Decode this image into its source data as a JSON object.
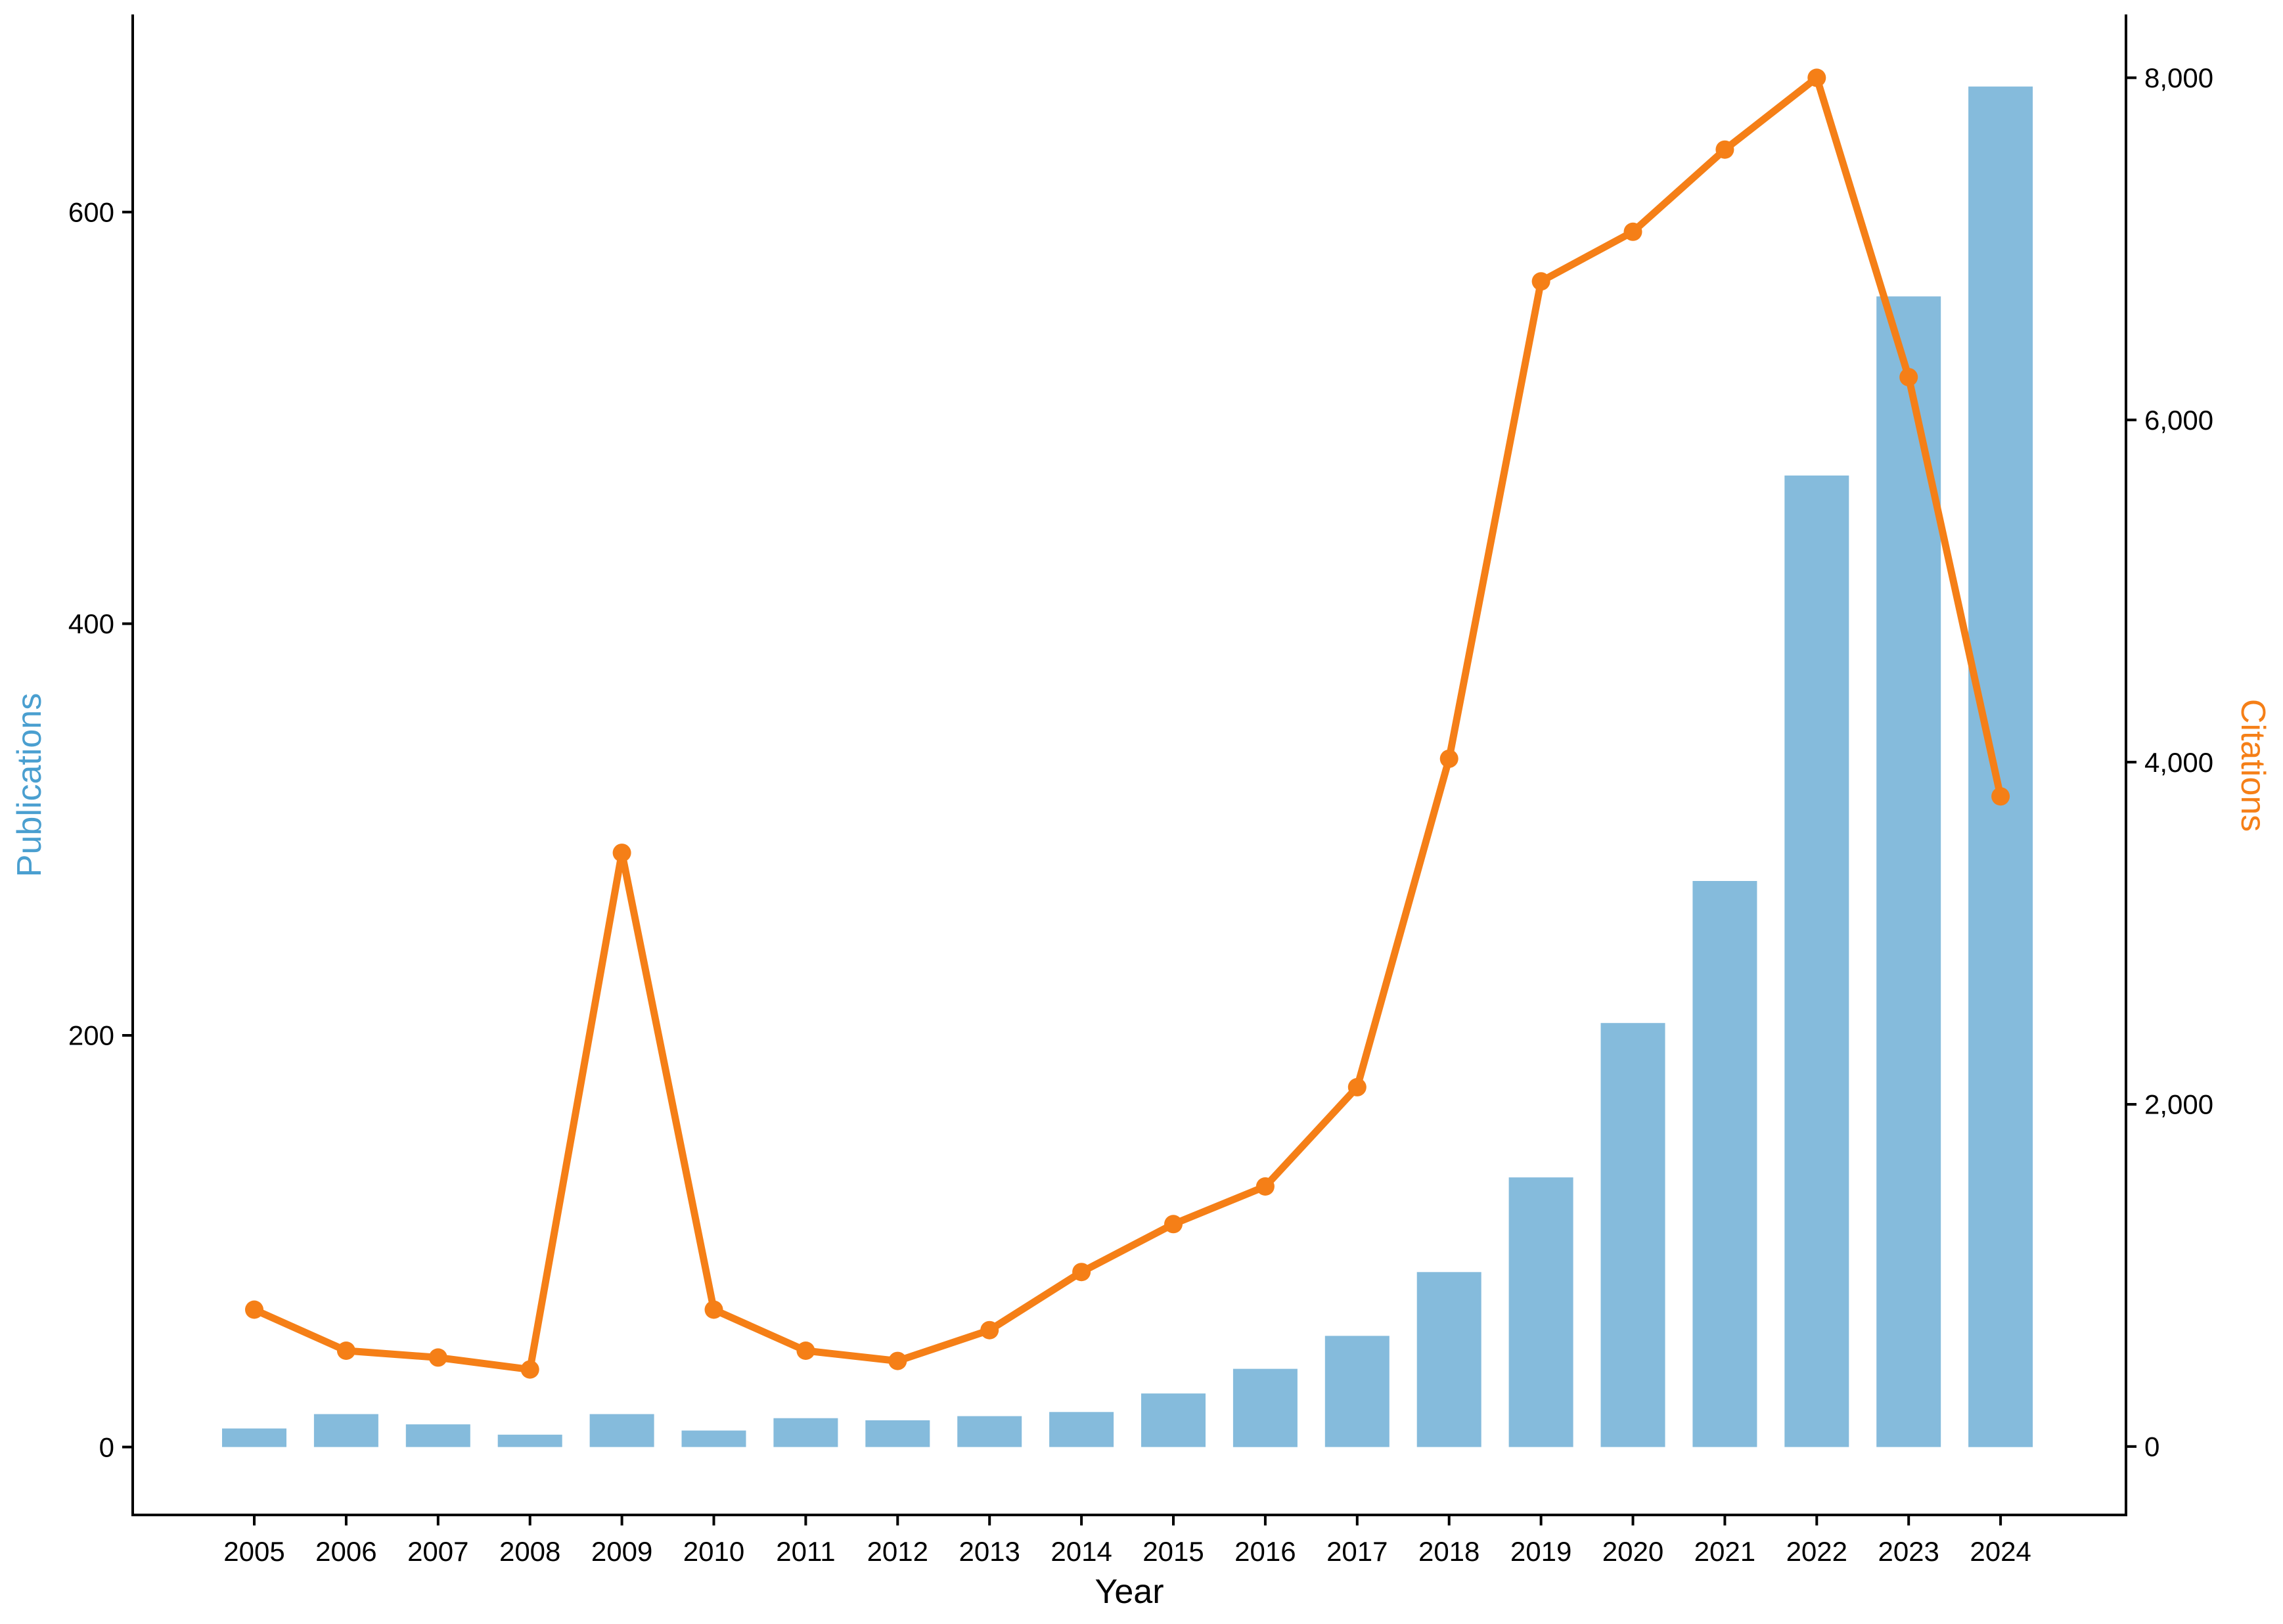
{
  "chart_data": {
    "type": "bar+line",
    "xlabel": "Year",
    "categories": [
      "2005",
      "2006",
      "2007",
      "2008",
      "2009",
      "2010",
      "2011",
      "2012",
      "2013",
      "2014",
      "2015",
      "2016",
      "2017",
      "2018",
      "2019",
      "2020",
      "2021",
      "2022",
      "2023",
      "2024"
    ],
    "series": [
      {
        "name": "Publications",
        "type": "bar",
        "axis": "left",
        "color": "#85bbdc",
        "values": [
          9,
          16,
          11,
          6,
          16,
          8,
          14,
          13,
          15,
          17,
          26,
          38,
          54,
          85,
          131,
          206,
          275,
          472,
          559,
          661
        ]
      },
      {
        "name": "Citations",
        "type": "line",
        "axis": "right",
        "color": "#f57f17",
        "values": [
          800,
          560,
          520,
          450,
          3470,
          800,
          560,
          500,
          680,
          1020,
          1300,
          1520,
          2100,
          4020,
          6810,
          7100,
          7580,
          8000,
          6250,
          3800
        ]
      }
    ],
    "y_left": {
      "label": "Publications",
      "label_color": "#4a9fd0",
      "ticks": [
        0,
        200,
        400,
        600
      ],
      "tick_labels": [
        "0",
        "200",
        "400",
        "600"
      ],
      "range": [
        -33,
        696
      ]
    },
    "y_right": {
      "label": "Citations",
      "label_color": "#f57f17",
      "ticks": [
        0,
        2000,
        4000,
        6000,
        8000
      ],
      "tick_labels": [
        "0",
        "2,000",
        "4,000",
        "6,000",
        "8,000"
      ],
      "range": [
        -400,
        8370
      ]
    },
    "grid": false,
    "legend": "none"
  }
}
